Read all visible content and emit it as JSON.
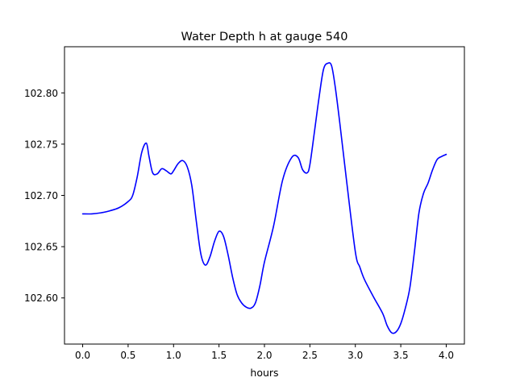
{
  "chart_data": {
    "type": "line",
    "title": "Water Depth h at gauge 540",
    "xlabel": "hours",
    "ylabel": "",
    "xlim": [
      -0.2,
      4.2
    ],
    "ylim": [
      102.555,
      102.845
    ],
    "xticks": [
      0.0,
      0.5,
      1.0,
      1.5,
      2.0,
      2.5,
      3.0,
      3.5,
      4.0
    ],
    "xtick_labels": [
      "0.0",
      "0.5",
      "1.0",
      "1.5",
      "2.0",
      "2.5",
      "3.0",
      "3.5",
      "4.0"
    ],
    "yticks": [
      102.6,
      102.65,
      102.7,
      102.75,
      102.8
    ],
    "ytick_labels": [
      "102.60",
      "102.65",
      "102.70",
      "102.75",
      "102.80"
    ],
    "grid": false,
    "series": [
      {
        "color": "#0000ff",
        "x": [
          0.0,
          0.1,
          0.2,
          0.3,
          0.4,
          0.5,
          0.55,
          0.6,
          0.65,
          0.7,
          0.73,
          0.77,
          0.82,
          0.87,
          0.92,
          0.97,
          1.0,
          1.05,
          1.1,
          1.15,
          1.2,
          1.25,
          1.3,
          1.35,
          1.4,
          1.45,
          1.5,
          1.55,
          1.6,
          1.65,
          1.7,
          1.75,
          1.8,
          1.85,
          1.9,
          1.95,
          2.0,
          2.1,
          2.2,
          2.3,
          2.37,
          2.42,
          2.47,
          2.5,
          2.55,
          2.6,
          2.65,
          2.7,
          2.74,
          2.78,
          2.83,
          2.9,
          3.0,
          3.05,
          3.1,
          3.2,
          3.3,
          3.35,
          3.4,
          3.45,
          3.5,
          3.55,
          3.6,
          3.65,
          3.7,
          3.75,
          3.8,
          3.85,
          3.9,
          3.95,
          4.0
        ],
        "y": [
          102.682,
          102.682,
          102.683,
          102.685,
          102.688,
          102.694,
          102.7,
          102.718,
          102.742,
          102.751,
          102.738,
          102.722,
          102.721,
          102.726,
          102.724,
          102.721,
          102.724,
          102.731,
          102.734,
          102.728,
          102.71,
          102.675,
          102.643,
          102.632,
          102.64,
          102.655,
          102.665,
          102.66,
          102.642,
          102.62,
          102.603,
          102.595,
          102.591,
          102.59,
          102.595,
          102.612,
          102.635,
          102.67,
          102.715,
          102.737,
          102.737,
          102.725,
          102.722,
          102.73,
          102.762,
          102.795,
          102.823,
          102.829,
          102.826,
          102.805,
          102.77,
          102.717,
          102.645,
          102.63,
          102.618,
          102.601,
          102.585,
          102.573,
          102.566,
          102.567,
          102.575,
          102.59,
          102.61,
          102.645,
          102.683,
          102.702,
          102.712,
          102.725,
          102.735,
          102.738,
          102.74
        ]
      }
    ]
  }
}
